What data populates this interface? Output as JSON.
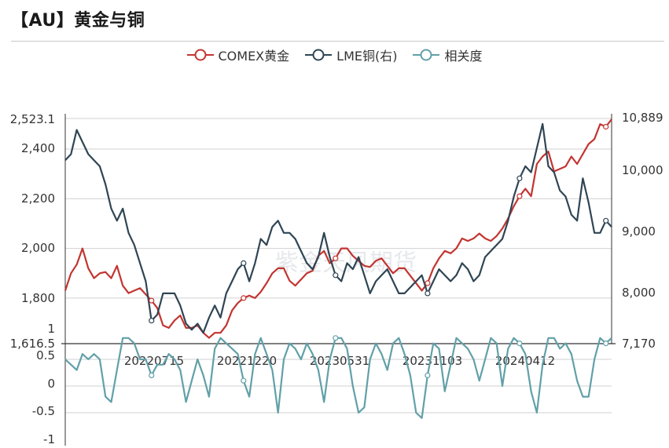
{
  "page_title": "【AU】黄金与铜",
  "legend": [
    {
      "label": "COMEX黄金",
      "color": "#c23531"
    },
    {
      "label": "LME铜(右)",
      "color": "#2f4554"
    },
    {
      "label": "相关度",
      "color": "#61a0a8"
    }
  ],
  "watermark": "紫金天风期货",
  "chart_data": [
    {
      "type": "line",
      "title": "【AU】黄金与铜",
      "x_labels": [
        "20220715",
        "20221220",
        "20230531",
        "20231103",
        "20240412"
      ],
      "left_axis": {
        "name": "COMEX黄金",
        "ticks": [
          "2,523.1",
          "2,400",
          "2,200",
          "2,000",
          "1,800",
          "1,616.5"
        ],
        "ylim": [
          1616.5,
          2523.1
        ]
      },
      "right_axis": {
        "name": "LME铜(右)",
        "ticks": [
          "10,889",
          "10,000",
          "9,000",
          "8,000",
          "7,170"
        ],
        "ylim": [
          7170,
          10889
        ]
      },
      "series": [
        {
          "name": "COMEX黄金",
          "axis": "left",
          "color": "#c23531",
          "values": [
            1830,
            1900,
            1935,
            2000,
            1920,
            1880,
            1900,
            1905,
            1880,
            1930,
            1850,
            1820,
            1830,
            1840,
            1815,
            1790,
            1760,
            1690,
            1680,
            1710,
            1730,
            1680,
            1680,
            1690,
            1660,
            1640,
            1660,
            1660,
            1690,
            1750,
            1780,
            1800,
            1810,
            1800,
            1825,
            1860,
            1900,
            1920,
            1920,
            1870,
            1850,
            1875,
            1900,
            1910,
            1970,
            1990,
            1940,
            1960,
            2000,
            2000,
            1970,
            1950,
            1930,
            1925,
            1950,
            1960,
            1930,
            1900,
            1920,
            1920,
            1890,
            1860,
            1830,
            1860,
            1920,
            1960,
            1990,
            1980,
            2000,
            2040,
            2030,
            2040,
            2060,
            2040,
            2030,
            2050,
            2080,
            2120,
            2170,
            2210,
            2240,
            2210,
            2340,
            2370,
            2390,
            2310,
            2320,
            2330,
            2370,
            2340,
            2380,
            2420,
            2440,
            2500,
            2490,
            2520
          ]
        },
        {
          "name": "LME铜(右)",
          "axis": "right",
          "color": "#2f4554",
          "values": [
            10200,
            10300,
            10700,
            10500,
            10300,
            10200,
            10100,
            9800,
            9400,
            9200,
            9400,
            9000,
            8800,
            8500,
            8200,
            7550,
            7650,
            8000,
            8000,
            8000,
            7800,
            7500,
            7400,
            7500,
            7350,
            7600,
            7800,
            7600,
            8000,
            8200,
            8400,
            8500,
            8200,
            8500,
            8900,
            8800,
            9100,
            9200,
            9000,
            9000,
            8900,
            8700,
            8500,
            8400,
            8600,
            9000,
            8600,
            8300,
            8200,
            8500,
            8400,
            8600,
            8300,
            8000,
            8200,
            8300,
            8400,
            8200,
            8000,
            8000,
            8100,
            8200,
            8300,
            8000,
            8200,
            8400,
            8300,
            8200,
            8300,
            8500,
            8400,
            8200,
            8300,
            8600,
            8700,
            8800,
            8900,
            9200,
            9600,
            9900,
            10100,
            10000,
            10400,
            10800,
            10100,
            10000,
            9700,
            9600,
            9300,
            9200,
            9900,
            9500,
            9000,
            9000,
            9200,
            9100
          ]
        },
        {
          "name": "相关度",
          "axis": "lower",
          "color": "#61a0a8",
          "values": [
            0.5,
            0.4,
            0.3,
            0.6,
            0.5,
            0.6,
            0.5,
            -0.2,
            -0.3,
            0.3,
            0.9,
            0.9,
            0.8,
            0.5,
            0.5,
            0.2,
            0.4,
            0.4,
            0.6,
            0.5,
            0.3,
            -0.3,
            0.1,
            0.5,
            0.2,
            -0.2,
            0.7,
            0.9,
            0.8,
            0.7,
            0.6,
            0.1,
            -0.2,
            0.6,
            0.9,
            0.6,
            0.3,
            -0.5,
            0.5,
            0.8,
            0.7,
            0.5,
            0.8,
            0.6,
            0.3,
            -0.3,
            0.5,
            0.9,
            0.9,
            0.7,
            0.0,
            -0.5,
            -0.4,
            0.5,
            0.8,
            0.6,
            0.3,
            0.8,
            0.9,
            0.6,
            0.2,
            -0.5,
            -0.6,
            0.2,
            0.8,
            0.7,
            -0.1,
            0.4,
            0.9,
            0.8,
            0.7,
            0.5,
            0.1,
            0.5,
            0.9,
            0.8,
            0.0,
            0.7,
            0.9,
            0.8,
            0.6,
            -0.1,
            -0.5,
            0.4,
            0.9,
            0.9,
            0.7,
            0.8,
            0.6,
            0.1,
            -0.2,
            -0.2,
            0.5,
            0.9,
            0.8,
            0.9
          ]
        }
      ]
    },
    {
      "type": "line",
      "title": "相关度",
      "left_axis": {
        "ticks": [
          "1",
          "0.5",
          "0",
          "-0.5",
          "-1"
        ],
        "ylim": [
          -1,
          1
        ]
      }
    }
  ]
}
